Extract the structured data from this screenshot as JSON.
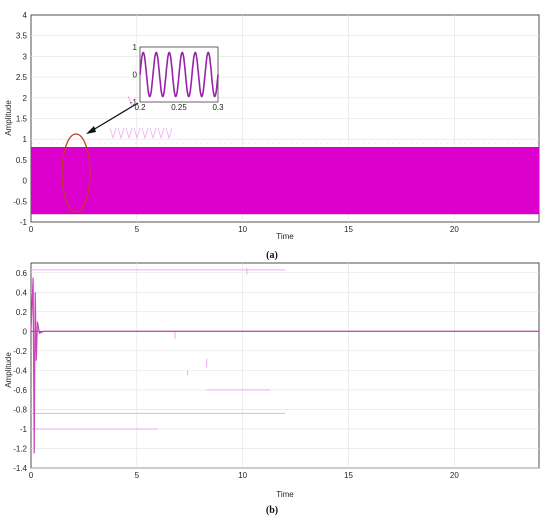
{
  "colors": {
    "signal": "#dd00cc",
    "signal_dark": "#9922aa",
    "grid": "#e2e2e2",
    "axis": "#262626",
    "ellipse": "#c0392b",
    "ghost": "#f2a6f0"
  },
  "panel_a": {
    "caption": "(a)",
    "xlabel": "Time",
    "ylabel": "Amplitude",
    "xticks": [
      "0",
      "5",
      "10",
      "15",
      "20"
    ],
    "yticks": [
      "-1",
      "-0.5",
      "0",
      "0.5",
      "1",
      "1.5",
      "2",
      "2.5",
      "3",
      "3.5",
      "4"
    ],
    "inset": {
      "xticks": [
        "0.2",
        "0.25",
        "0.3"
      ],
      "yticks": [
        "-1",
        "0",
        "1"
      ]
    }
  },
  "panel_b": {
    "caption": "(b)",
    "xlabel": "Time",
    "ylabel": "Amplitude",
    "xticks": [
      "0",
      "5",
      "10",
      "15",
      "20"
    ],
    "yticks": [
      "-1.4",
      "-1.2",
      "-1",
      "-0.8",
      "-0.6",
      "-0.4",
      "-0.2",
      "0",
      "0.2",
      "0.4",
      "0.6"
    ]
  },
  "chart_data": [
    {
      "type": "line",
      "title": "",
      "xlabel": "Time",
      "ylabel": "Amplitude",
      "xlim": [
        0,
        24
      ],
      "ylim": [
        -1,
        4
      ],
      "grid": true,
      "series": [
        {
          "description_of_shape": "dense sinusoid filling a band",
          "envelope_upper": 0.8,
          "envelope_lower": -0.8,
          "x": [
            0,
            24
          ]
        }
      ],
      "inset": {
        "xlim": [
          0.2,
          0.3
        ],
        "ylim": [
          -1,
          1
        ],
        "cycles": 6,
        "amplitude": 0.8
      }
    },
    {
      "type": "line",
      "title": "",
      "xlabel": "Time",
      "ylabel": "Amplitude",
      "xlim": [
        0,
        24
      ],
      "ylim": [
        -1.4,
        0.7
      ],
      "grid": true,
      "series": [
        {
          "x": [
            0,
            0.1,
            0.15,
            0.2,
            0.25,
            0.3,
            0.4,
            0.6,
            1,
            24
          ],
          "y": [
            0,
            0.55,
            -1.25,
            0.4,
            -0.3,
            0.1,
            -0.02,
            0,
            0,
            0
          ]
        }
      ]
    }
  ]
}
